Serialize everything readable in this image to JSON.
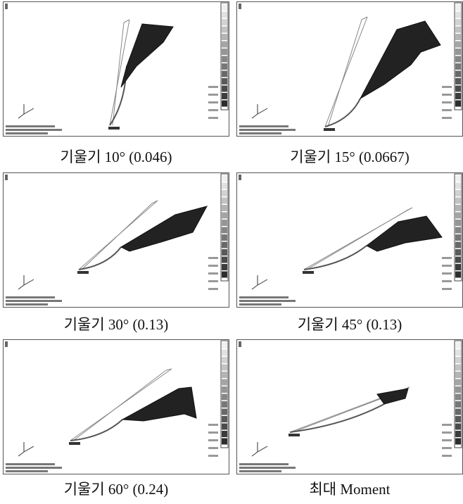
{
  "figures": [
    {
      "caption": "기울기 10° (0.046)"
    },
    {
      "caption": "기울기 15° (0.0667)"
    },
    {
      "caption": "기울기 30° (0.13)"
    },
    {
      "caption": "기울기 45° (0.13)"
    },
    {
      "caption": "기울기 60° (0.24)"
    },
    {
      "caption": "최대 Moment"
    }
  ]
}
